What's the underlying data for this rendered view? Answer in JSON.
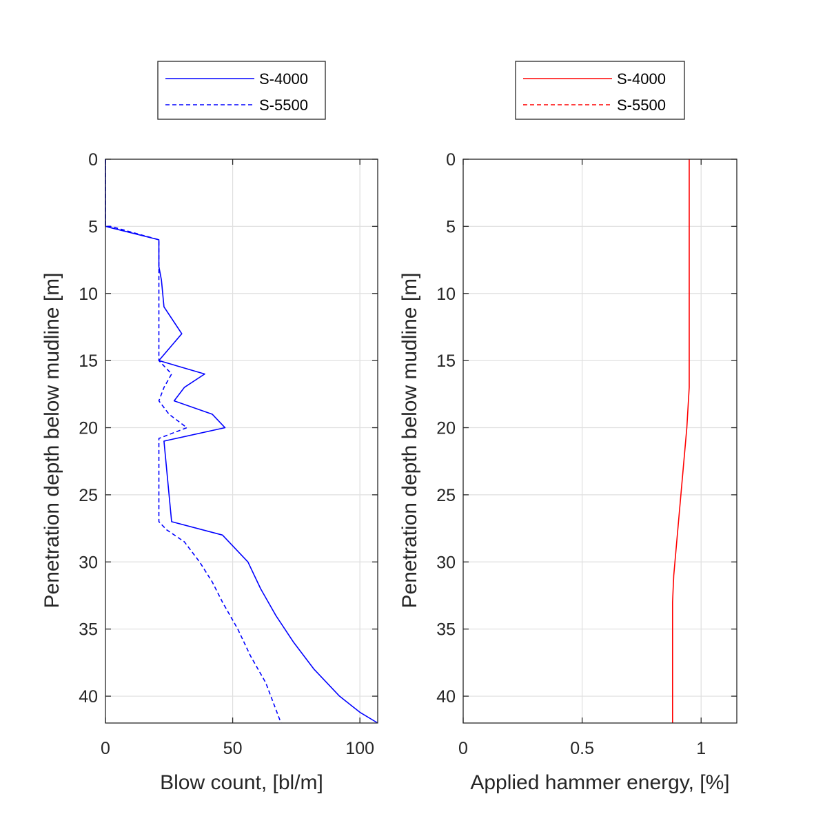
{
  "chart_data": [
    {
      "type": "line",
      "xlabel": "Blow count, [bl/m]",
      "ylabel": "Penetration depth below mudline [m]",
      "xlim": [
        0,
        107
      ],
      "ylim": [
        0,
        42
      ],
      "y_reversed": true,
      "x_ticks": [
        0,
        50,
        100
      ],
      "y_ticks": [
        0,
        5,
        10,
        15,
        20,
        25,
        30,
        35,
        40
      ],
      "grid": true,
      "legend_position": "above",
      "color": "#0000ff",
      "series": [
        {
          "name": "S-4000",
          "line_style": "solid",
          "points": [
            [
              0,
              0
            ],
            [
              0,
              5
            ],
            [
              2,
              5.1
            ],
            [
              21,
              6
            ],
            [
              21,
              8
            ],
            [
              22,
              9
            ],
            [
              23,
              11
            ],
            [
              30,
              13
            ],
            [
              21,
              15
            ],
            [
              39,
              16
            ],
            [
              31,
              17
            ],
            [
              27,
              18
            ],
            [
              42,
              19
            ],
            [
              47,
              20
            ],
            [
              23,
              21
            ],
            [
              25,
              25
            ],
            [
              26,
              27
            ],
            [
              46,
              28
            ],
            [
              51,
              29
            ],
            [
              56,
              30
            ],
            [
              61,
              32
            ],
            [
              67,
              34
            ],
            [
              74,
              36
            ],
            [
              82,
              38
            ],
            [
              92,
              40
            ],
            [
              100,
              41.2
            ],
            [
              107,
              42
            ]
          ]
        },
        {
          "name": "S-5500",
          "line_style": "dashed",
          "points": [
            [
              0,
              0
            ],
            [
              0,
              5
            ],
            [
              2,
              5
            ],
            [
              21,
              6
            ],
            [
              21,
              8
            ],
            [
              21,
              15
            ],
            [
              26,
              16
            ],
            [
              23,
              17
            ],
            [
              21,
              18
            ],
            [
              25,
              19
            ],
            [
              32,
              20
            ],
            [
              21,
              20.8
            ],
            [
              21,
              27
            ],
            [
              24,
              27.6
            ],
            [
              31,
              28.5
            ],
            [
              37,
              30
            ],
            [
              42,
              31.5
            ],
            [
              46,
              33
            ],
            [
              52,
              35
            ],
            [
              57,
              37
            ],
            [
              63,
              39
            ],
            [
              69,
              42
            ]
          ]
        }
      ]
    },
    {
      "type": "line",
      "xlabel": "Applied hammer energy, [%]",
      "ylabel": "Penetration depth below mudline [m]",
      "xlim": [
        0,
        1.15
      ],
      "ylim": [
        0,
        42
      ],
      "y_reversed": true,
      "x_ticks": [
        "0",
        "0.5",
        "1"
      ],
      "y_ticks": [
        0,
        5,
        10,
        15,
        20,
        25,
        30,
        35,
        40
      ],
      "grid": true,
      "legend_position": "above",
      "color": "#ff0000",
      "series": [
        {
          "name": "S-4000",
          "line_style": "solid",
          "points": [
            [
              0.95,
              0
            ],
            [
              0.95,
              17
            ],
            [
              0.94,
              20
            ],
            [
              0.92,
              24
            ],
            [
              0.9,
              28
            ],
            [
              0.885,
              31
            ],
            [
              0.88,
              33
            ],
            [
              0.88,
              42
            ]
          ]
        },
        {
          "name": "S-5500",
          "line_style": "dashed",
          "points": []
        }
      ]
    }
  ]
}
